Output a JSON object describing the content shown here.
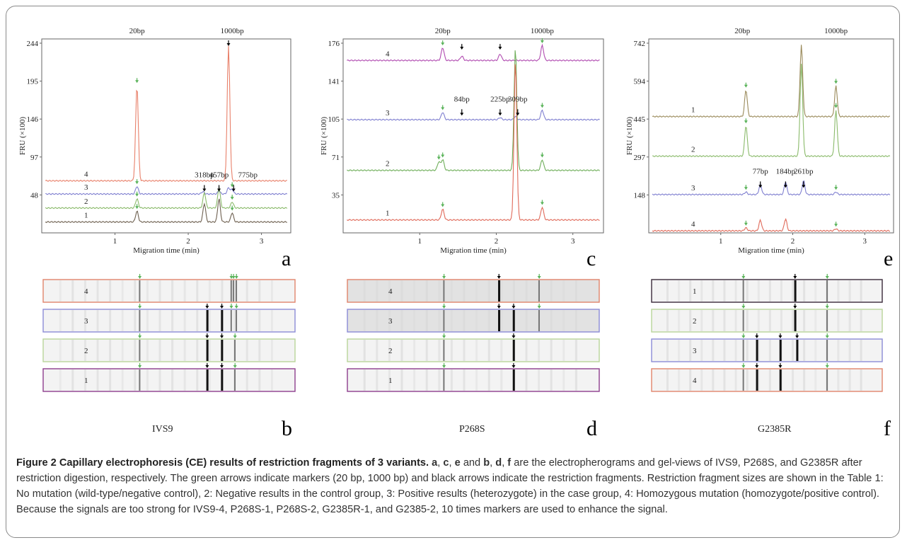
{
  "caption": {
    "title": "Figure 2 Capillary electrophoresis (CE) results of restriction fragments of 3 variants.",
    "bold_letters": [
      "a",
      "c",
      "e",
      "b",
      "d",
      "f"
    ],
    "text": " are the electropherograms and gel-views of IVS9, P268S, and G2385R after restriction digestion, respectively. The green arrows indicate markers (20 bp, 1000 bp) and black arrows indicate the restriction fragments. Restriction fragment sizes are shown in the Table 1: No mutation (wild-type/negative control), 2: Negative results in the control group, 3: Positive results (heterozygote) in the case group, 4: Homozygous mutation (homozygote/positive control). Because the signals are too strong for IVS9-4, P268S-1, P268S-2, G2385R-1, and G2385-2, 10 times markers are used to enhance the signal."
  },
  "colors": {
    "marker_arrow": "#5ab35a",
    "fragment_arrow": "#000000",
    "lane_orange": "#e0846b",
    "lane_blue": "#8b8bd6",
    "lane_green": "#b8d49a",
    "lane_purple": "#8d3d8d",
    "lane_dark": "#3a2a3a"
  },
  "chart_data": [
    {
      "type": "line",
      "panel": "a",
      "variant": "IVS9",
      "ylabel": "FRU (×100)",
      "xlabel": "Migration time (min)",
      "ylim": [
        0,
        244
      ],
      "y_ticks": [
        "244",
        "195",
        "146",
        "97",
        "48"
      ],
      "x_ticks": [
        "1",
        "2",
        "3"
      ],
      "top_labels": [
        "20bp",
        "1000bp"
      ],
      "fragment_labels": [
        "318bp",
        "457bp",
        "775bp"
      ],
      "series": [
        {
          "name": "4",
          "color": "#e8806a",
          "baseline": 67,
          "peaks": [
            [
              1.3,
              190
            ],
            [
              2.55,
              240
            ]
          ]
        },
        {
          "name": "3",
          "color": "#7f7fd0",
          "baseline": 50,
          "peaks": [
            [
              1.3,
              60
            ],
            [
              2.2,
              53
            ],
            [
              2.42,
              54
            ],
            [
              2.55,
              58
            ],
            [
              2.6,
              56
            ]
          ]
        },
        {
          "name": "2",
          "color": "#8aba6a",
          "baseline": 32,
          "peaks": [
            [
              1.3,
              44
            ],
            [
              2.22,
              52
            ],
            [
              2.42,
              58
            ],
            [
              2.6,
              40
            ]
          ]
        },
        {
          "name": "1",
          "color": "#6e6050",
          "baseline": 14,
          "peaks": [
            [
              1.3,
              28
            ],
            [
              2.22,
              38
            ],
            [
              2.42,
              44
            ],
            [
              2.6,
              26
            ]
          ]
        }
      ]
    },
    {
      "type": "line",
      "panel": "c",
      "variant": "P268S",
      "ylabel": "FRU (×100)",
      "xlabel": "Migration time (min)",
      "ylim": [
        0,
        176
      ],
      "y_ticks": [
        "176",
        "141",
        "105",
        "71",
        "35"
      ],
      "x_ticks": [
        "1",
        "2",
        "3"
      ],
      "top_labels": [
        "20bp",
        "1000bp"
      ],
      "fragment_labels": [
        "84bp",
        "225bp",
        "309bp"
      ],
      "series": [
        {
          "name": "4",
          "color": "#b04ab0",
          "baseline": 160,
          "peaks": [
            [
              1.3,
              172
            ],
            [
              1.55,
              164
            ],
            [
              2.05,
              166
            ],
            [
              2.6,
              174
            ]
          ]
        },
        {
          "name": "3",
          "color": "#7f7fd0",
          "baseline": 105,
          "peaks": [
            [
              1.3,
              112
            ],
            [
              2.05,
              107
            ],
            [
              2.25,
              108
            ],
            [
              2.6,
              114
            ]
          ]
        },
        {
          "name": "2",
          "color": "#6fae5a",
          "baseline": 58,
          "peaks": [
            [
              1.25,
              66
            ],
            [
              1.3,
              68
            ],
            [
              2.25,
              172
            ],
            [
              2.6,
              68
            ]
          ]
        },
        {
          "name": "1",
          "color": "#e06a5a",
          "baseline": 12,
          "peaks": [
            [
              1.3,
              22
            ],
            [
              2.25,
              160
            ],
            [
              2.6,
              24
            ]
          ]
        }
      ]
    },
    {
      "type": "line",
      "panel": "e",
      "variant": "G2385R",
      "ylabel": "FRU (×100)",
      "xlabel": "Migration time (min)",
      "ylim": [
        0,
        742
      ],
      "y_ticks": [
        "742",
        "594",
        "445",
        "297",
        "148"
      ],
      "x_ticks": [
        "1",
        "2",
        "3"
      ],
      "top_labels": [
        "20bp",
        "1000bp"
      ],
      "fragment_labels": [
        "77bp",
        "184bp",
        "261bp"
      ],
      "series": [
        {
          "name": "1",
          "color": "#9a8a5a",
          "baseline": 455,
          "peaks": [
            [
              1.35,
              560
            ],
            [
              2.12,
              735
            ],
            [
              2.6,
              575
            ]
          ]
        },
        {
          "name": "2",
          "color": "#8aba6a",
          "baseline": 300,
          "peaks": [
            [
              1.35,
              420
            ],
            [
              2.12,
              660
            ],
            [
              2.6,
              480
            ]
          ]
        },
        {
          "name": "3",
          "color": "#7f7fd0",
          "baseline": 150,
          "peaks": [
            [
              1.35,
              160
            ],
            [
              1.55,
              190
            ],
            [
              1.9,
              200
            ],
            [
              2.15,
              205
            ],
            [
              2.6,
              160
            ]
          ]
        },
        {
          "name": "4",
          "color": "#e06a5a",
          "baseline": 8,
          "peaks": [
            [
              1.35,
              20
            ],
            [
              1.55,
              50
            ],
            [
              1.9,
              55
            ],
            [
              2.6,
              16
            ]
          ]
        }
      ]
    }
  ],
  "gels": [
    {
      "panel": "b",
      "bottom_label": "IVS9",
      "lanes": [
        {
          "label": "4",
          "border": "#e0846b",
          "bands": [
            1.3,
            2.55,
            2.58,
            2.62
          ]
        },
        {
          "label": "3",
          "border": "#8b8bd6",
          "bands": [
            1.3,
            2.22,
            2.42,
            2.55,
            2.62
          ]
        },
        {
          "label": "2",
          "border": "#b8d49a",
          "bands": [
            1.3,
            2.22,
            2.42,
            2.6
          ]
        },
        {
          "label": "1",
          "border": "#8d3d8d",
          "bands": [
            1.3,
            2.22,
            2.42,
            2.6
          ]
        }
      ]
    },
    {
      "panel": "d",
      "bottom_label": "P268S",
      "lanes": [
        {
          "label": "4",
          "border": "#e0846b",
          "bands": [
            1.3,
            2.05,
            2.6
          ]
        },
        {
          "label": "3",
          "border": "#8b8bd6",
          "bands": [
            1.3,
            2.05,
            2.25,
            2.6
          ]
        },
        {
          "label": "2",
          "border": "#b8d49a",
          "bands": [
            1.3,
            2.25
          ]
        },
        {
          "label": "1",
          "border": "#8d3d8d",
          "bands": [
            1.3,
            2.25
          ]
        }
      ]
    },
    {
      "panel": "f",
      "bottom_label": "G2385R",
      "lanes": [
        {
          "label": "1",
          "border": "#3a2a3a",
          "bands": [
            1.35,
            2.12,
            2.6
          ]
        },
        {
          "label": "2",
          "border": "#b8d49a",
          "bands": [
            1.35,
            2.12,
            2.6
          ]
        },
        {
          "label": "3",
          "border": "#8b8bd6",
          "bands": [
            1.35,
            1.55,
            1.9,
            2.15,
            2.6
          ]
        },
        {
          "label": "4",
          "border": "#e0846b",
          "bands": [
            1.35,
            1.55,
            1.9,
            2.6
          ]
        }
      ]
    }
  ]
}
